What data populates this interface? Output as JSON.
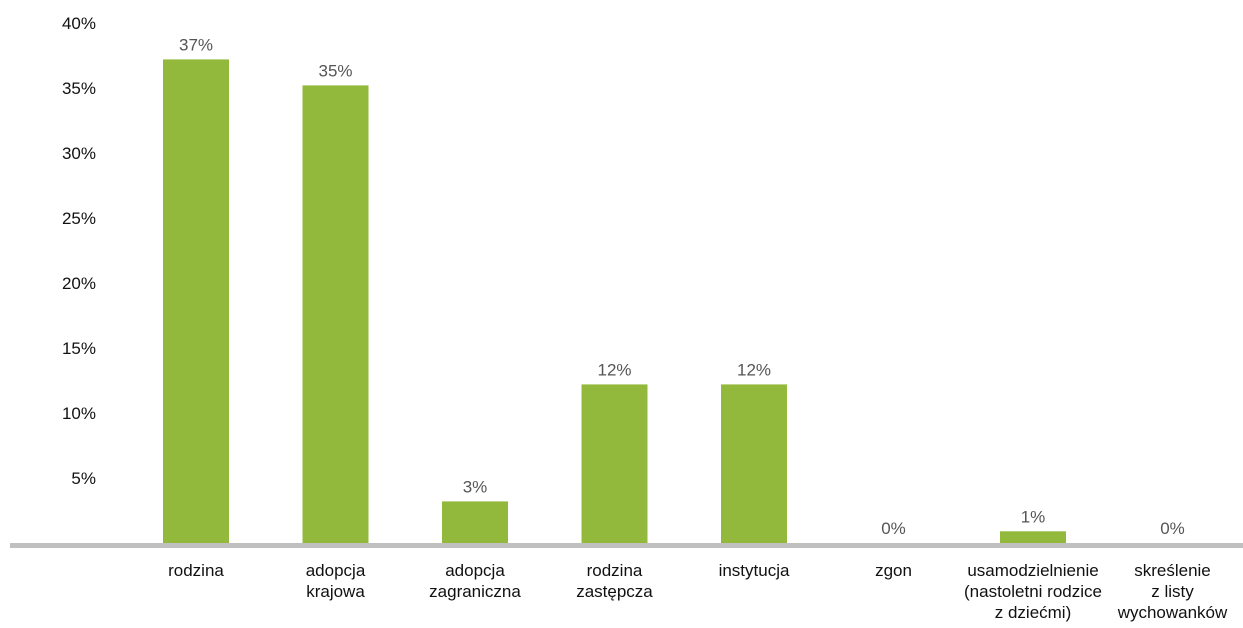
{
  "chart_data": {
    "type": "bar",
    "title": "",
    "xlabel": "",
    "ylabel": "",
    "ylim": [
      0,
      40
    ],
    "grid": false,
    "legend": "none",
    "y_ticks": [
      "5%",
      "10%",
      "15%",
      "20%",
      "25%",
      "30%",
      "35%",
      "40%"
    ],
    "y_tick_values": [
      5,
      10,
      15,
      20,
      25,
      30,
      35,
      40
    ],
    "categories": [
      [
        "rodzina"
      ],
      [
        "adopcja",
        "krajowa"
      ],
      [
        "adopcja",
        "zagraniczna"
      ],
      [
        "rodzina",
        "zastępcza"
      ],
      [
        "instytucja"
      ],
      [
        "zgon"
      ],
      [
        "usamodzielnienie",
        "(nastoletni rodzice",
        "z dziećmi)"
      ],
      [
        "skreślenie",
        "z listy",
        "wychowanków"
      ]
    ],
    "values": [
      37.2,
      35.2,
      3.2,
      12.2,
      12.2,
      0.0,
      0.9,
      0.0
    ],
    "data_labels": [
      "37%",
      "35%",
      "3%",
      "12%",
      "12%",
      "0%",
      "1%",
      "0%"
    ],
    "colors": {
      "bar": "#92b93c",
      "axis": "#c0c0c0"
    }
  }
}
